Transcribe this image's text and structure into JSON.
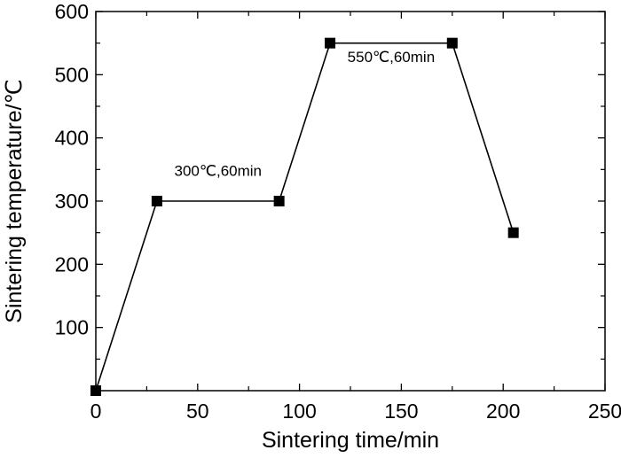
{
  "chart_data": {
    "type": "line",
    "title": "",
    "xlabel": "Sintering time/min",
    "ylabel": "Sintering temperature/℃",
    "xlim": [
      0,
      250
    ],
    "ylim": [
      0,
      600
    ],
    "x_ticks": [
      0,
      50,
      100,
      150,
      200,
      250
    ],
    "y_ticks": [
      100,
      200,
      300,
      400,
      500,
      600
    ],
    "x_tick_labels": [
      "0",
      "50",
      "100",
      "150",
      "200",
      "250"
    ],
    "y_tick_labels": [
      "100",
      "200",
      "300",
      "400",
      "500",
      "600"
    ],
    "grid": false,
    "legend": null,
    "marker": "square",
    "color": "#000000",
    "series": [
      {
        "x": [
          0,
          30,
          90,
          115,
          175,
          205
        ],
        "y": [
          0,
          300,
          300,
          550,
          550,
          250
        ]
      }
    ],
    "annotations": [
      {
        "text": "300℃,60min",
        "x": 60,
        "y": 340
      },
      {
        "text": "550℃,60min",
        "x": 145,
        "y": 520
      }
    ]
  }
}
